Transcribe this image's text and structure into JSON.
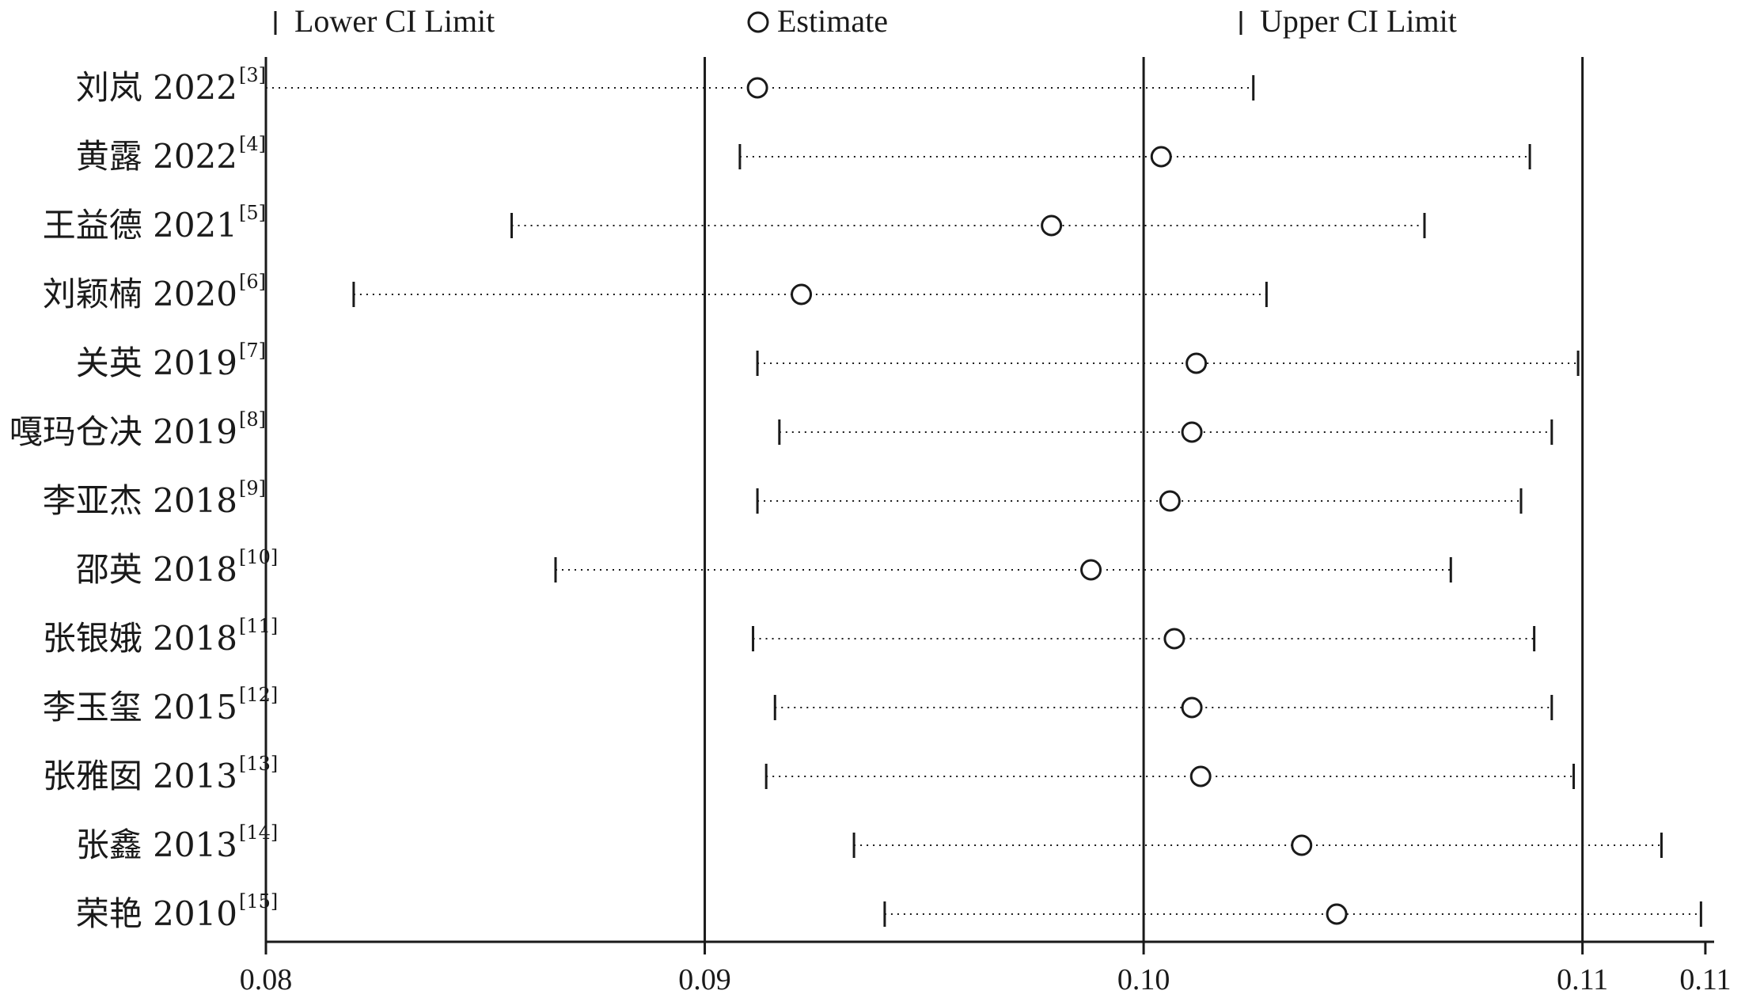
{
  "chart_data": {
    "type": "scatter",
    "subtype": "forest-plot",
    "title": "",
    "xlabel": "",
    "ylabel": "",
    "xlim": [
      0.08,
      0.113
    ],
    "ticks": [
      {
        "value": 0.08,
        "label": "0.08"
      },
      {
        "value": 0.09,
        "label": "0.09"
      },
      {
        "value": 0.1,
        "label": "0.10"
      },
      {
        "value": 0.11,
        "label": "0.11"
      },
      {
        "value": 0.1128,
        "label": "0.11"
      }
    ],
    "reference_lines": [
      0.09,
      0.1,
      0.11
    ],
    "legend": {
      "placement": "top",
      "entries": [
        {
          "key": "lower",
          "label": "Lower CI Limit",
          "symbol": "bar"
        },
        {
          "key": "estimate",
          "label": "Estimate",
          "symbol": "circle"
        },
        {
          "key": "upper",
          "label": "Upper CI Limit",
          "symbol": "bar"
        }
      ]
    },
    "studies": [
      {
        "name": "刘岚 2022",
        "ref": "[3]",
        "lower": 0.08,
        "estimate": 0.0912,
        "upper": 0.1025
      },
      {
        "name": "黄露 2022",
        "ref": "[4]",
        "lower": 0.0908,
        "estimate": 0.1004,
        "upper": 0.1088
      },
      {
        "name": "王益德 2021",
        "ref": "[5]",
        "lower": 0.0856,
        "estimate": 0.0979,
        "upper": 0.1064
      },
      {
        "name": "刘颖楠 2020",
        "ref": "[6]",
        "lower": 0.082,
        "estimate": 0.0922,
        "upper": 0.1028
      },
      {
        "name": "关英 2019",
        "ref": "[7]",
        "lower": 0.0912,
        "estimate": 0.1012,
        "upper": 0.1099
      },
      {
        "name": "嘎玛仓决 2019",
        "ref": "[8]",
        "lower": 0.0917,
        "estimate": 0.1011,
        "upper": 0.1093
      },
      {
        "name": "李亚杰 2018",
        "ref": "[9]",
        "lower": 0.0912,
        "estimate": 0.1006,
        "upper": 0.1086
      },
      {
        "name": "邵英 2018",
        "ref": "[10]",
        "lower": 0.0866,
        "estimate": 0.0988,
        "upper": 0.107
      },
      {
        "name": "张银娥 2018",
        "ref": "[11]",
        "lower": 0.0911,
        "estimate": 0.1007,
        "upper": 0.1089
      },
      {
        "name": "李玉玺 2015",
        "ref": "[12]",
        "lower": 0.0916,
        "estimate": 0.1011,
        "upper": 0.1093
      },
      {
        "name": "张雅囡 2013",
        "ref": "[13]",
        "lower": 0.0914,
        "estimate": 0.1013,
        "upper": 0.1098
      },
      {
        "name": "张鑫 2013",
        "ref": "[14]",
        "lower": 0.0934,
        "estimate": 0.1036,
        "upper": 0.1118
      },
      {
        "name": "荣艳 2010",
        "ref": "[15]",
        "lower": 0.0941,
        "estimate": 0.1044,
        "upper": 0.1127
      }
    ]
  }
}
